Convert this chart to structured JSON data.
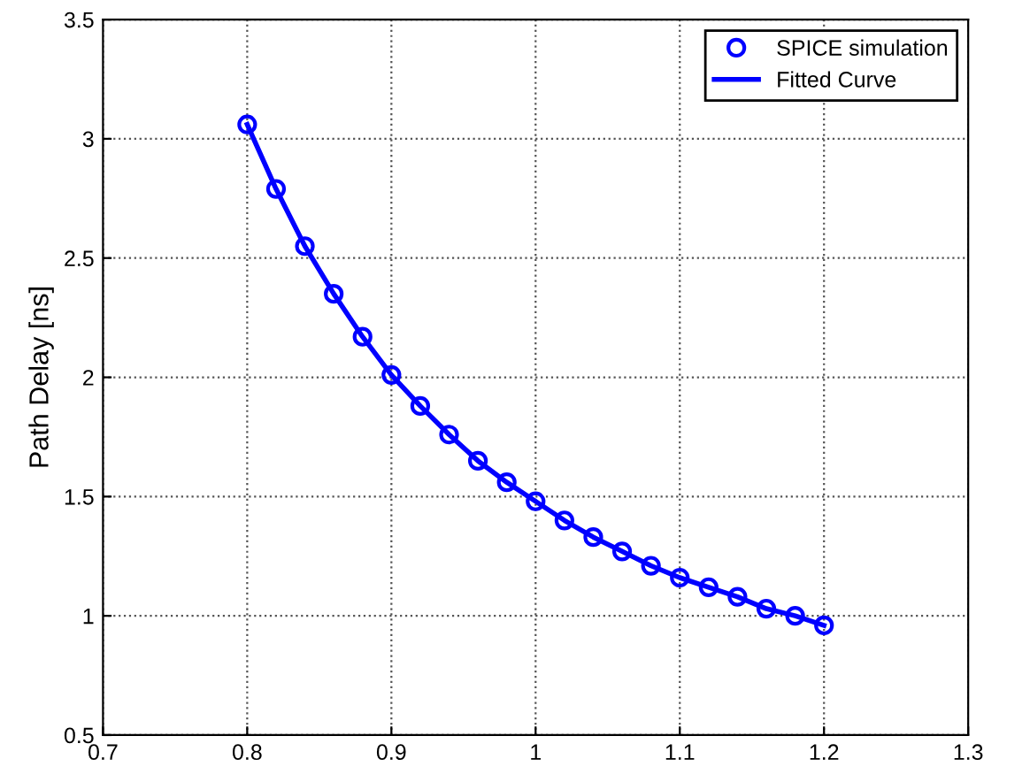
{
  "chart_data": {
    "type": "scatter",
    "ylabel": "Path Delay [ns]",
    "x": [
      0.8,
      0.82,
      0.84,
      0.86,
      0.88,
      0.9,
      0.92,
      0.94,
      0.96,
      0.98,
      1.0,
      1.02,
      1.04,
      1.06,
      1.08,
      1.1,
      1.12,
      1.14,
      1.16,
      1.18,
      1.2
    ],
    "series": [
      {
        "name": "SPICE simulation",
        "color": "#0000ff",
        "marker": "circle",
        "values": [
          3.06,
          2.79,
          2.55,
          2.35,
          2.17,
          2.01,
          1.88,
          1.76,
          1.65,
          1.56,
          1.48,
          1.4,
          1.33,
          1.27,
          1.21,
          1.16,
          1.12,
          1.08,
          1.03,
          1.0,
          0.96
        ]
      },
      {
        "name": "Fitted Curve",
        "type": "line",
        "color": "#0000ff",
        "line_style": "solid",
        "values": [
          3.06,
          2.79,
          2.55,
          2.35,
          2.17,
          2.01,
          1.88,
          1.76,
          1.65,
          1.56,
          1.48,
          1.4,
          1.33,
          1.27,
          1.21,
          1.16,
          1.12,
          1.08,
          1.03,
          1.0,
          0.96
        ]
      }
    ],
    "xlim": [
      0.7,
      1.3
    ],
    "xticks": [
      0.7,
      0.8,
      0.9,
      1,
      1.1,
      1.2,
      1.3
    ],
    "ylim": [
      0.5,
      3.5
    ],
    "yticks": [
      0.5,
      1,
      1.5,
      2,
      2.5,
      3,
      3.5
    ],
    "grid": true,
    "legend": "top right"
  }
}
